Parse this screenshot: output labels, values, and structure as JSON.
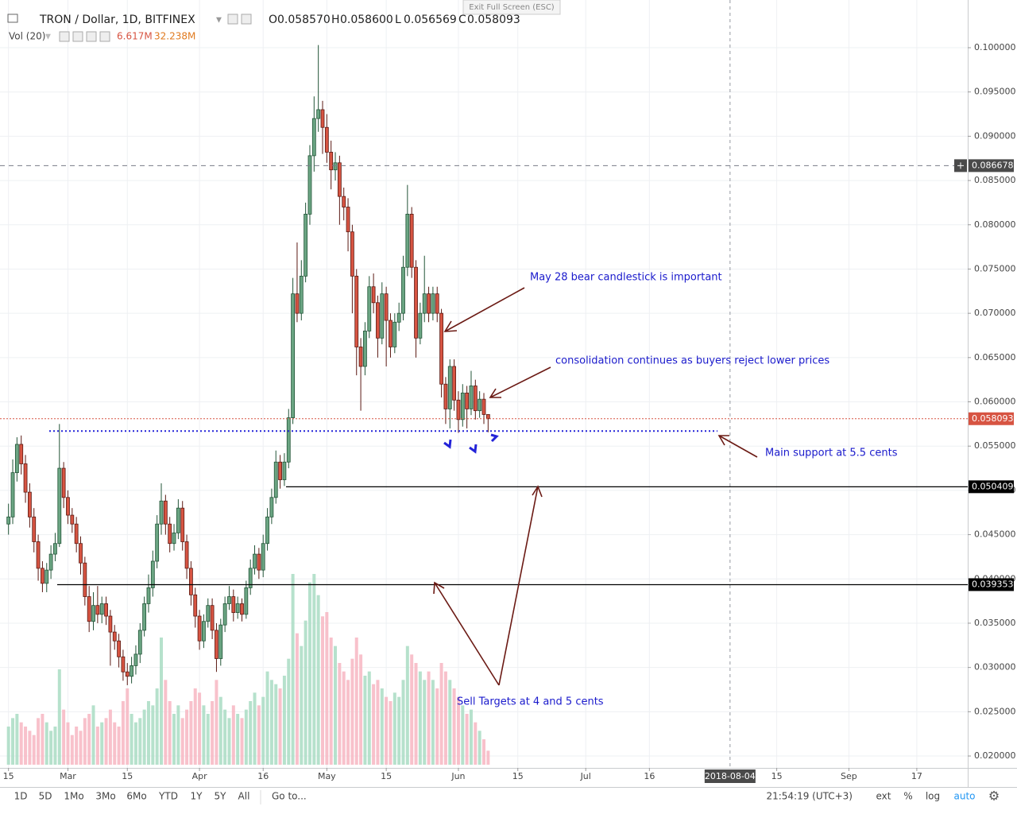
{
  "header": {
    "symbol": "TRON / Dollar, 1D, BITFINEX",
    "ohlc": [
      {
        "key": "O",
        "value": "0.058570"
      },
      {
        "key": "H",
        "value": "0.058600"
      },
      {
        "key": "L",
        "value": "0.056569"
      },
      {
        "key": "C",
        "value": "0.058093"
      }
    ],
    "volume_indicator": "Vol (20)",
    "volume_value": "6.617M",
    "volume_ma": "32.238M",
    "exit_fullscreen": "Exit Full Screen (ESC)"
  },
  "chart_data": {
    "type": "candlestick",
    "x": [
      "2018-02-15",
      "2018-02-16",
      "2018-02-17",
      "2018-02-18",
      "2018-02-19",
      "2018-02-20",
      "2018-02-21",
      "2018-02-22",
      "2018-02-23",
      "2018-02-24",
      "2018-02-25",
      "2018-02-26",
      "2018-02-27",
      "2018-02-28",
      "2018-03-01",
      "2018-03-02",
      "2018-03-03",
      "2018-03-04",
      "2018-03-05",
      "2018-03-06",
      "2018-03-07",
      "2018-03-08",
      "2018-03-09",
      "2018-03-10",
      "2018-03-11",
      "2018-03-12",
      "2018-03-13",
      "2018-03-14",
      "2018-03-15",
      "2018-03-16",
      "2018-03-17",
      "2018-03-18",
      "2018-03-19",
      "2018-03-20",
      "2018-03-21",
      "2018-03-22",
      "2018-03-23",
      "2018-03-24",
      "2018-03-25",
      "2018-03-26",
      "2018-03-27",
      "2018-03-28",
      "2018-03-29",
      "2018-03-30",
      "2018-03-31",
      "2018-04-01",
      "2018-04-02",
      "2018-04-03",
      "2018-04-04",
      "2018-04-05",
      "2018-04-06",
      "2018-04-07",
      "2018-04-08",
      "2018-04-09",
      "2018-04-10",
      "2018-04-11",
      "2018-04-12",
      "2018-04-13",
      "2018-04-14",
      "2018-04-15",
      "2018-04-16",
      "2018-04-17",
      "2018-04-18",
      "2018-04-19",
      "2018-04-20",
      "2018-04-21",
      "2018-04-22",
      "2018-04-23",
      "2018-04-24",
      "2018-04-25",
      "2018-04-26",
      "2018-04-27",
      "2018-04-28",
      "2018-04-29",
      "2018-04-30",
      "2018-05-01",
      "2018-05-02",
      "2018-05-03",
      "2018-05-04",
      "2018-05-05",
      "2018-05-06",
      "2018-05-07",
      "2018-05-08",
      "2018-05-09",
      "2018-05-10",
      "2018-05-11",
      "2018-05-12",
      "2018-05-13",
      "2018-05-14",
      "2018-05-15",
      "2018-05-16",
      "2018-05-17",
      "2018-05-18",
      "2018-05-19",
      "2018-05-20",
      "2018-05-21",
      "2018-05-22",
      "2018-05-23",
      "2018-05-24",
      "2018-05-25",
      "2018-05-26",
      "2018-05-27",
      "2018-05-28",
      "2018-05-29",
      "2018-05-30",
      "2018-05-31",
      "2018-06-01",
      "2018-06-02",
      "2018-06-03",
      "2018-06-04",
      "2018-06-05",
      "2018-06-06",
      "2018-06-07",
      "2018-06-08"
    ],
    "open": [
      0.0462,
      0.047,
      0.052,
      0.0552,
      0.053,
      0.0498,
      0.047,
      0.0442,
      0.0412,
      0.0395,
      0.041,
      0.0428,
      0.044,
      0.0525,
      0.0492,
      0.0472,
      0.0462,
      0.044,
      0.0418,
      0.038,
      0.0352,
      0.037,
      0.036,
      0.0372,
      0.0358,
      0.034,
      0.033,
      0.0312,
      0.0295,
      0.029,
      0.0302,
      0.0315,
      0.0342,
      0.0372,
      0.039,
      0.042,
      0.0462,
      0.0488,
      0.0462,
      0.044,
      0.0452,
      0.048,
      0.0442,
      0.0412,
      0.0382,
      0.0358,
      0.033,
      0.0352,
      0.037,
      0.0342,
      0.031,
      0.0348,
      0.0372,
      0.038,
      0.0362,
      0.0372,
      0.036,
      0.039,
      0.0412,
      0.0428,
      0.041,
      0.044,
      0.047,
      0.0492,
      0.0532,
      0.0512,
      0.0532,
      0.0582,
      0.0722,
      0.07,
      0.0742,
      0.0812,
      0.0878,
      0.092,
      0.093,
      0.091,
      0.0882,
      0.0862,
      0.087,
      0.0832,
      0.082,
      0.0792,
      0.0742,
      0.0662,
      0.064,
      0.068,
      0.073,
      0.0712,
      0.0672,
      0.0722,
      0.0692,
      0.0662,
      0.069,
      0.07,
      0.0752,
      0.0812,
      0.0752,
      0.0672,
      0.07,
      0.0722,
      0.07,
      0.0722,
      0.07,
      0.062,
      0.0592,
      0.064,
      0.0602,
      0.058,
      0.061,
      0.0592,
      0.0618,
      0.059,
      0.0603,
      0.05857
    ],
    "high": [
      0.0485,
      0.0535,
      0.056,
      0.0562,
      0.054,
      0.0508,
      0.048,
      0.045,
      0.042,
      0.0418,
      0.0438,
      0.0452,
      0.0575,
      0.0532,
      0.05,
      0.048,
      0.047,
      0.0448,
      0.0425,
      0.0392,
      0.0385,
      0.0392,
      0.038,
      0.038,
      0.0365,
      0.0348,
      0.0338,
      0.032,
      0.0305,
      0.0312,
      0.0325,
      0.035,
      0.038,
      0.0405,
      0.0432,
      0.0472,
      0.0508,
      0.0495,
      0.047,
      0.0462,
      0.049,
      0.0488,
      0.045,
      0.042,
      0.039,
      0.0365,
      0.036,
      0.0378,
      0.0378,
      0.035,
      0.0355,
      0.038,
      0.0392,
      0.0388,
      0.038,
      0.0378,
      0.0398,
      0.0422,
      0.0438,
      0.0435,
      0.045,
      0.048,
      0.0502,
      0.0545,
      0.054,
      0.0542,
      0.0592,
      0.074,
      0.078,
      0.076,
      0.0825,
      0.089,
      0.0945,
      0.1003,
      0.094,
      0.0925,
      0.0895,
      0.0882,
      0.0878,
      0.0842,
      0.083,
      0.08,
      0.075,
      0.0672,
      0.069,
      0.0742,
      0.0745,
      0.072,
      0.0735,
      0.073,
      0.07,
      0.07,
      0.0712,
      0.0765,
      0.0845,
      0.082,
      0.076,
      0.0712,
      0.0765,
      0.073,
      0.073,
      0.073,
      0.0705,
      0.0628,
      0.0648,
      0.0648,
      0.0612,
      0.062,
      0.0618,
      0.0635,
      0.0625,
      0.0612,
      0.061,
      0.0586
    ],
    "low": [
      0.045,
      0.0462,
      0.051,
      0.0518,
      0.0486,
      0.0458,
      0.043,
      0.0398,
      0.0385,
      0.0385,
      0.04,
      0.042,
      0.0436,
      0.048,
      0.0462,
      0.0452,
      0.043,
      0.0405,
      0.037,
      0.034,
      0.0342,
      0.035,
      0.035,
      0.0348,
      0.0302,
      0.032,
      0.03,
      0.0285,
      0.028,
      0.0282,
      0.0292,
      0.0305,
      0.0335,
      0.0362,
      0.038,
      0.0412,
      0.045,
      0.045,
      0.043,
      0.0432,
      0.0445,
      0.0432,
      0.04,
      0.037,
      0.0345,
      0.032,
      0.0322,
      0.0345,
      0.0332,
      0.0295,
      0.0302,
      0.034,
      0.0365,
      0.0352,
      0.0355,
      0.0352,
      0.0355,
      0.0382,
      0.0405,
      0.04,
      0.0402,
      0.0432,
      0.0462,
      0.0485,
      0.0502,
      0.0505,
      0.0525,
      0.0575,
      0.069,
      0.0692,
      0.0735,
      0.08,
      0.086,
      0.0905,
      0.088,
      0.087,
      0.084,
      0.085,
      0.08,
      0.0805,
      0.077,
      0.07,
      0.063,
      0.059,
      0.063,
      0.0672,
      0.07,
      0.065,
      0.0665,
      0.064,
      0.065,
      0.0655,
      0.068,
      0.0692,
      0.0742,
      0.074,
      0.065,
      0.0665,
      0.069,
      0.069,
      0.0692,
      0.069,
      0.0605,
      0.0575,
      0.057,
      0.059,
      0.0565,
      0.0572,
      0.057,
      0.0585,
      0.058,
      0.0582,
      0.0575,
      0.056569
    ],
    "close": [
      0.047,
      0.052,
      0.0552,
      0.053,
      0.0498,
      0.047,
      0.0442,
      0.0412,
      0.0395,
      0.041,
      0.0428,
      0.044,
      0.0525,
      0.0492,
      0.0472,
      0.0462,
      0.044,
      0.0418,
      0.038,
      0.0352,
      0.037,
      0.036,
      0.0372,
      0.0358,
      0.034,
      0.033,
      0.0312,
      0.0295,
      0.029,
      0.0302,
      0.0315,
      0.0342,
      0.0372,
      0.039,
      0.042,
      0.0462,
      0.0488,
      0.0462,
      0.044,
      0.0452,
      0.048,
      0.0442,
      0.0412,
      0.0382,
      0.0358,
      0.033,
      0.0352,
      0.037,
      0.0342,
      0.031,
      0.0348,
      0.0372,
      0.038,
      0.0362,
      0.0372,
      0.036,
      0.039,
      0.0412,
      0.0428,
      0.041,
      0.044,
      0.047,
      0.0492,
      0.0532,
      0.0512,
      0.0532,
      0.0582,
      0.0722,
      0.07,
      0.0742,
      0.0812,
      0.0878,
      0.092,
      0.093,
      0.091,
      0.0882,
      0.0862,
      0.087,
      0.0832,
      0.082,
      0.0792,
      0.0742,
      0.0662,
      0.064,
      0.068,
      0.073,
      0.0712,
      0.0672,
      0.0722,
      0.0692,
      0.0662,
      0.069,
      0.07,
      0.0752,
      0.0812,
      0.0752,
      0.0672,
      0.07,
      0.0722,
      0.07,
      0.0722,
      0.07,
      0.062,
      0.0592,
      0.064,
      0.0602,
      0.058,
      0.061,
      0.0592,
      0.0618,
      0.059,
      0.0603,
      0.05857,
      0.058093
    ],
    "volume": [
      18,
      22,
      24,
      20,
      18,
      16,
      14,
      22,
      24,
      20,
      16,
      18,
      45,
      26,
      20,
      14,
      18,
      16,
      22,
      24,
      28,
      18,
      20,
      22,
      26,
      20,
      18,
      30,
      36,
      24,
      20,
      22,
      26,
      30,
      28,
      36,
      60,
      40,
      30,
      24,
      28,
      22,
      26,
      30,
      36,
      34,
      28,
      24,
      30,
      40,
      32,
      26,
      22,
      28,
      24,
      22,
      26,
      30,
      34,
      28,
      32,
      44,
      40,
      38,
      36,
      42,
      50,
      90,
      62,
      56,
      68,
      86,
      90,
      80,
      70,
      72,
      60,
      56,
      48,
      44,
      40,
      50,
      60,
      52,
      42,
      44,
      38,
      40,
      36,
      32,
      30,
      34,
      32,
      40,
      56,
      52,
      48,
      44,
      40,
      44,
      40,
      36,
      48,
      44,
      40,
      36,
      32,
      28,
      24,
      26,
      20,
      16,
      12,
      6.617
    ],
    "up_color": "#6ba583",
    "up_border": "#225437",
    "down_color": "#d75442",
    "down_border": "#5b1a13",
    "volume_up_color": "#a9dcc3",
    "volume_down_color": "#f7b6c2",
    "xlim": [
      "2018-02-13",
      "2018-09-29"
    ],
    "xticks": [
      {
        "value": "2018-02-15",
        "label": "15"
      },
      {
        "value": "2018-03-01",
        "label": "Mar"
      },
      {
        "value": "2018-03-15",
        "label": "15"
      },
      {
        "value": "2018-04-01",
        "label": "Apr"
      },
      {
        "value": "2018-04-16",
        "label": "16"
      },
      {
        "value": "2018-05-01",
        "label": "May"
      },
      {
        "value": "2018-05-15",
        "label": "15"
      },
      {
        "value": "2018-06-01",
        "label": "Jun"
      },
      {
        "value": "2018-06-15",
        "label": "15"
      },
      {
        "value": "2018-07-01",
        "label": "Jul"
      },
      {
        "value": "2018-07-16",
        "label": "16"
      },
      {
        "value": "2018-08-15",
        "label": "15"
      },
      {
        "value": "2018-09-01",
        "label": "Sep"
      },
      {
        "value": "2018-09-17",
        "label": "17"
      }
    ],
    "ylim": [
      0.018656,
      0.105387
    ],
    "yticks": [
      {
        "value": 0.02,
        "label": "0.020000"
      },
      {
        "value": 0.025,
        "label": "0.025000"
      },
      {
        "value": 0.03,
        "label": "0.030000"
      },
      {
        "value": 0.035,
        "label": "0.035000"
      },
      {
        "value": 0.04,
        "label": "0.040000"
      },
      {
        "value": 0.045,
        "label": "0.045000"
      },
      {
        "value": 0.05,
        "label": "0.050000"
      },
      {
        "value": 0.055,
        "label": "0.055000"
      },
      {
        "value": 0.06,
        "label": "0.060000"
      },
      {
        "value": 0.065,
        "label": "0.065000"
      },
      {
        "value": 0.07,
        "label": "0.070000"
      },
      {
        "value": 0.075,
        "label": "0.075000"
      },
      {
        "value": 0.08,
        "label": "0.080000"
      },
      {
        "value": 0.085,
        "label": "0.085000"
      },
      {
        "value": 0.09,
        "label": "0.090000"
      },
      {
        "value": 0.095,
        "label": "0.095000"
      },
      {
        "value": 0.1,
        "label": "0.100000"
      }
    ],
    "grid": true,
    "crosshair_date": "2018-08-04",
    "price_lines": [
      {
        "value": 0.086678,
        "color": "#787b86",
        "style": "dashed",
        "label_color": "#4a4a4a"
      },
      {
        "value": 0.058093,
        "color": "#d75442",
        "style": "dotted",
        "label_color": "#d75442"
      },
      {
        "value": 0.050409,
        "color": "#000000",
        "style": "solid",
        "label_color": "#000000"
      },
      {
        "value": 0.039353,
        "color": "#000000",
        "style": "solid",
        "label_color": "#000000"
      }
    ],
    "support_line": {
      "value": 0.0567,
      "color": "#2323d8"
    },
    "annotations": [
      "May 28 bear candlestick is important",
      "consolidation continues as buyers reject lower prices",
      "Main support at 5.5 cents",
      "Sell Targets at 4 and 5 cents"
    ],
    "annotation_color": "#1a1acc",
    "arrow_color": "#6b1a14"
  },
  "toolbar": {
    "ranges": [
      "1D",
      "5D",
      "1Mo",
      "3Mo",
      "6Mo",
      "YTD",
      "1Y",
      "5Y",
      "All"
    ],
    "goto": "Go to...",
    "time": "21:54:19 (UTC+3)",
    "options": [
      "ext",
      "%",
      "log",
      "auto"
    ]
  }
}
